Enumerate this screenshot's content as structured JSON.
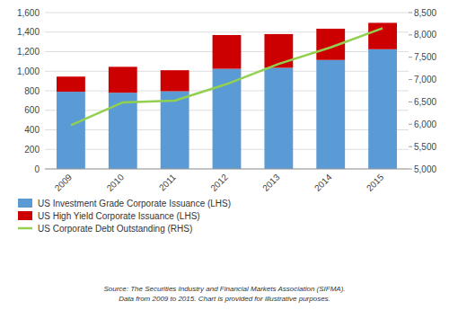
{
  "chart_data": {
    "type": "bar",
    "categories": [
      "2009",
      "2010",
      "2011",
      "2012",
      "2013",
      "2014",
      "2015"
    ],
    "series": [
      {
        "name": "US Investment Grade Corporate Issuance (LHS)",
        "type": "bar",
        "color": "#5b9bd5",
        "values": [
          790,
          780,
          795,
          1025,
          1035,
          1115,
          1225
        ]
      },
      {
        "name": "US High Yield Corporate Issuance (LHS)",
        "type": "bar",
        "color": "#cc0000",
        "values": [
          155,
          265,
          215,
          345,
          345,
          320,
          270
        ]
      },
      {
        "name": "US Corporate Debt Outstanding (RHS)",
        "type": "line",
        "axis": "y2",
        "color": "#92d050",
        "values": [
          5980,
          6490,
          6530,
          6900,
          7350,
          7720,
          8150
        ]
      }
    ],
    "stacked": true,
    "ylim": [
      0,
      1600
    ],
    "yticks": [
      0,
      200,
      400,
      600,
      800,
      {
        "value": 1000,
        "label": "1,000"
      },
      {
        "value": 1200,
        "label": "1,200"
      },
      {
        "value": 1400,
        "label": "1,400"
      },
      {
        "value": 1600,
        "label": "1,600"
      }
    ],
    "y2lim": [
      5000,
      8500
    ],
    "y2ticks": [
      {
        "value": 5000,
        "label": "5,000"
      },
      {
        "value": 5500,
        "label": "5,500"
      },
      {
        "value": 6000,
        "label": "6,000"
      },
      {
        "value": 6500,
        "label": "6,500"
      },
      {
        "value": 7000,
        "label": "7,000"
      },
      {
        "value": 7500,
        "label": "7,500"
      },
      {
        "value": 8000,
        "label": "8,000"
      },
      {
        "value": 8500,
        "label": "8,500"
      }
    ],
    "grid": true,
    "legend": "lower left",
    "annotations": [
      "Source: The Securities Industry and Financial Markets Association (SIFMA).\nData from 2009 to 2015.  Chart is provided for illustrative purposes."
    ]
  }
}
